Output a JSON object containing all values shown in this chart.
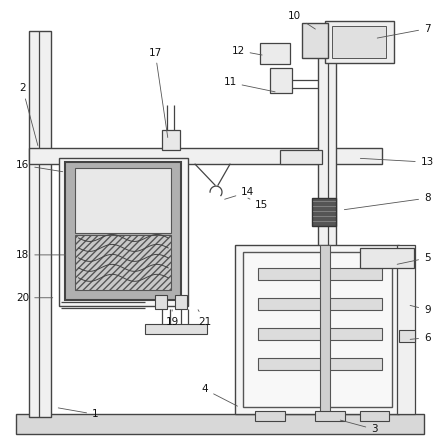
{
  "bg_color": "#ffffff",
  "lc": "#444444",
  "lw": 0.9,
  "labels": [
    [
      1,
      95,
      415,
      55,
      408
    ],
    [
      2,
      22,
      88,
      38,
      148
    ],
    [
      3,
      375,
      430,
      338,
      420
    ],
    [
      4,
      205,
      390,
      240,
      408
    ],
    [
      5,
      428,
      258,
      395,
      265
    ],
    [
      6,
      428,
      338,
      408,
      340
    ],
    [
      7,
      428,
      28,
      375,
      38
    ],
    [
      8,
      428,
      198,
      342,
      210
    ],
    [
      9,
      428,
      310,
      408,
      305
    ],
    [
      10,
      295,
      15,
      318,
      30
    ],
    [
      11,
      230,
      82,
      278,
      92
    ],
    [
      12,
      238,
      50,
      265,
      55
    ],
    [
      13,
      428,
      162,
      358,
      158
    ],
    [
      14,
      248,
      192,
      222,
      200
    ],
    [
      15,
      262,
      205,
      248,
      198
    ],
    [
      16,
      22,
      165,
      65,
      172
    ],
    [
      17,
      155,
      52,
      168,
      140
    ],
    [
      18,
      22,
      255,
      68,
      255
    ],
    [
      19,
      172,
      322,
      172,
      310
    ],
    [
      20,
      22,
      298,
      55,
      298
    ],
    [
      21,
      205,
      322,
      198,
      310
    ]
  ]
}
